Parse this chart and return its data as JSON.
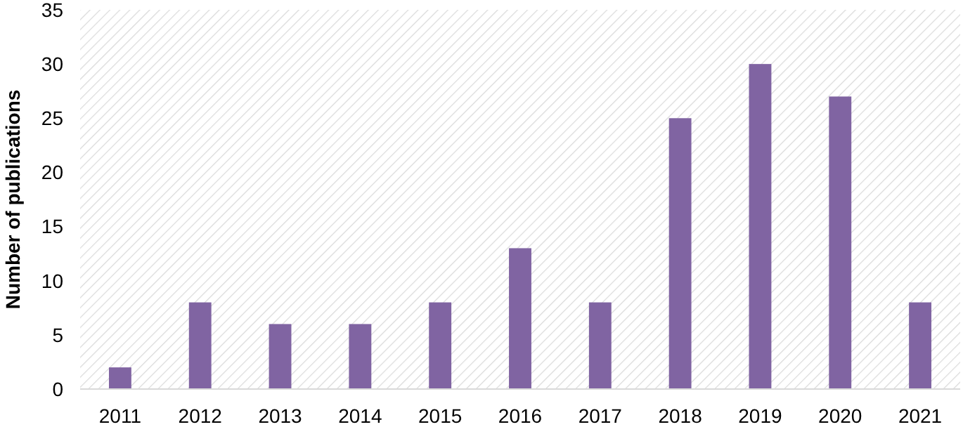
{
  "chart_data": {
    "type": "bar",
    "ylabel": "Number of publications",
    "categories": [
      "2011",
      "2012",
      "2013",
      "2014",
      "2015",
      "2016",
      "2017",
      "2018",
      "2019",
      "2020",
      "2021"
    ],
    "values": [
      2,
      8,
      6,
      6,
      8,
      13,
      8,
      25,
      30,
      27,
      8
    ],
    "color": "#8064a2",
    "ylim": [
      0,
      35
    ],
    "yticks": [
      0,
      5,
      10,
      15,
      20,
      25,
      30,
      35
    ],
    "grid": false
  }
}
